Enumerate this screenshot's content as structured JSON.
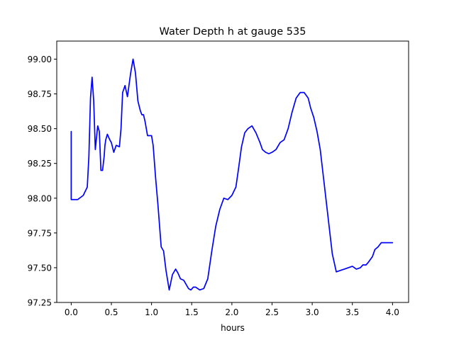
{
  "chart_data": {
    "type": "line",
    "title": "Water Depth h at gauge 535",
    "xlabel": "hours",
    "ylabel": "",
    "xlim": [
      -0.18,
      4.2
    ],
    "ylim": [
      97.25,
      99.13
    ],
    "xticks": [
      0.0,
      0.5,
      1.0,
      1.5,
      2.0,
      2.5,
      3.0,
      3.5,
      4.0
    ],
    "xtick_labels": [
      "0.0",
      "0.5",
      "1.0",
      "1.5",
      "2.0",
      "2.5",
      "3.0",
      "3.5",
      "4.0"
    ],
    "yticks": [
      97.25,
      97.5,
      97.75,
      98.0,
      98.25,
      98.5,
      98.75,
      99.0
    ],
    "ytick_labels": [
      "97.25",
      "97.50",
      "97.75",
      "98.00",
      "98.25",
      "98.50",
      "98.75",
      "99.00"
    ],
    "grid": false,
    "series": [
      {
        "color": "#0000ff",
        "x": [
          0.0,
          0.0,
          0.08,
          0.15,
          0.2,
          0.22,
          0.24,
          0.26,
          0.28,
          0.3,
          0.33,
          0.35,
          0.37,
          0.39,
          0.41,
          0.42,
          0.43,
          0.45,
          0.48,
          0.5,
          0.53,
          0.56,
          0.6,
          0.62,
          0.64,
          0.67,
          0.7,
          0.74,
          0.77,
          0.8,
          0.83,
          0.86,
          0.88,
          0.9,
          0.92,
          0.95,
          1.0,
          1.02,
          1.05,
          1.08,
          1.12,
          1.15,
          1.18,
          1.22,
          1.26,
          1.3,
          1.33,
          1.36,
          1.4,
          1.43,
          1.46,
          1.49,
          1.52,
          1.55,
          1.6,
          1.65,
          1.7,
          1.75,
          1.8,
          1.85,
          1.9,
          1.95,
          2.0,
          2.05,
          2.08,
          2.12,
          2.16,
          2.2,
          2.25,
          2.3,
          2.35,
          2.38,
          2.42,
          2.46,
          2.5,
          2.55,
          2.6,
          2.65,
          2.7,
          2.75,
          2.8,
          2.85,
          2.9,
          2.95,
          2.98,
          3.02,
          3.06,
          3.1,
          3.15,
          3.2,
          3.25,
          3.3,
          3.35,
          3.4,
          3.45,
          3.5,
          3.55,
          3.6,
          3.63,
          3.67,
          3.7,
          3.75,
          3.78,
          3.82,
          3.86,
          3.9,
          3.95,
          4.0
        ],
        "y": [
          98.48,
          97.99,
          97.99,
          98.02,
          98.08,
          98.3,
          98.72,
          98.87,
          98.7,
          98.35,
          98.52,
          98.48,
          98.2,
          98.2,
          98.3,
          98.38,
          98.42,
          98.46,
          98.42,
          98.4,
          98.33,
          98.38,
          98.37,
          98.5,
          98.76,
          98.81,
          98.73,
          98.9,
          99.0,
          98.9,
          98.7,
          98.63,
          98.6,
          98.6,
          98.55,
          98.45,
          98.45,
          98.38,
          98.15,
          97.95,
          97.65,
          97.62,
          97.48,
          97.34,
          97.45,
          97.49,
          97.46,
          97.42,
          97.41,
          97.38,
          97.35,
          97.34,
          97.36,
          97.36,
          97.34,
          97.35,
          97.42,
          97.62,
          97.8,
          97.92,
          98.0,
          97.99,
          98.02,
          98.08,
          98.2,
          98.37,
          98.47,
          98.5,
          98.52,
          98.47,
          98.4,
          98.35,
          98.33,
          98.32,
          98.33,
          98.35,
          98.4,
          98.42,
          98.5,
          98.62,
          98.72,
          98.76,
          98.76,
          98.72,
          98.65,
          98.58,
          98.48,
          98.35,
          98.1,
          97.85,
          97.6,
          97.47,
          97.48,
          97.49,
          97.5,
          97.51,
          97.49,
          97.5,
          97.52,
          97.52,
          97.54,
          97.58,
          97.63,
          97.65,
          97.68,
          97.68,
          97.68,
          97.68
        ]
      }
    ]
  }
}
